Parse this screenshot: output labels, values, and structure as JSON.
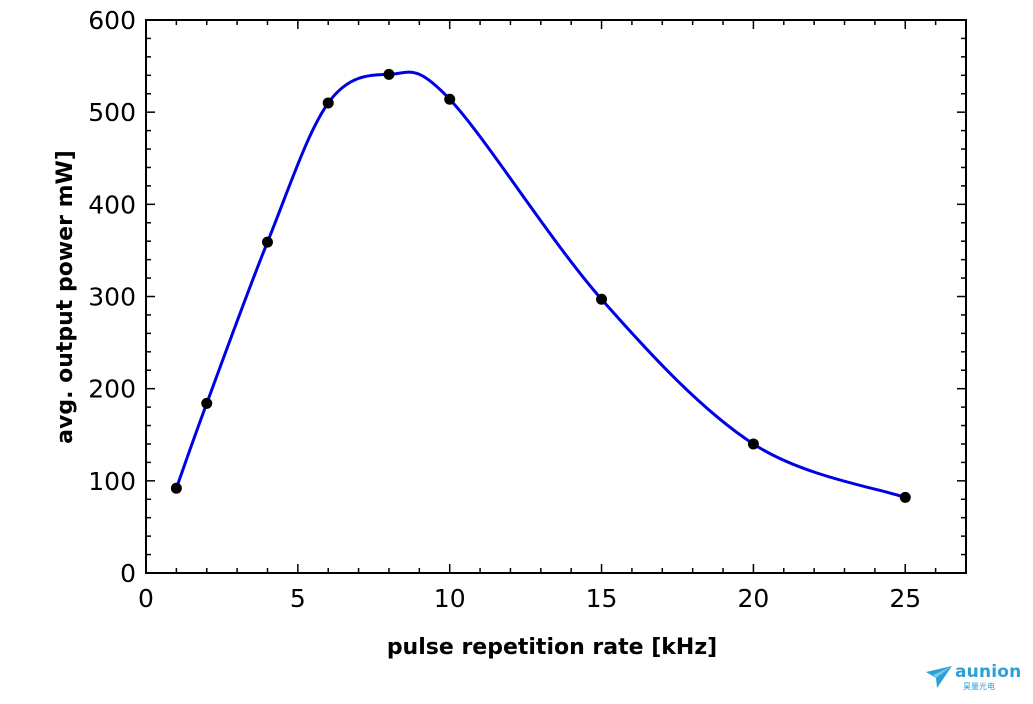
{
  "chart_data": {
    "type": "line",
    "xlabel": "pulse repetition rate [kHz]",
    "ylabel": "avg. output power mW]",
    "xlim": [
      0,
      27
    ],
    "ylim": [
      0,
      600
    ],
    "x_ticks": [
      0,
      5,
      10,
      15,
      20,
      25
    ],
    "y_ticks": [
      0,
      100,
      200,
      300,
      400,
      500,
      600
    ],
    "grid": false,
    "series": [
      {
        "x": [
          1,
          2,
          4,
          6,
          8,
          10,
          15,
          20,
          25
        ],
        "y": [
          92,
          184,
          359,
          510,
          541,
          514,
          297,
          140,
          82
        ],
        "marker": "circle",
        "marker_color": "#000000",
        "line_color": "#0000e6"
      }
    ]
  },
  "watermark": {
    "brand": "aunion",
    "sub": "昊量光电",
    "color": "#2a9fd8"
  }
}
